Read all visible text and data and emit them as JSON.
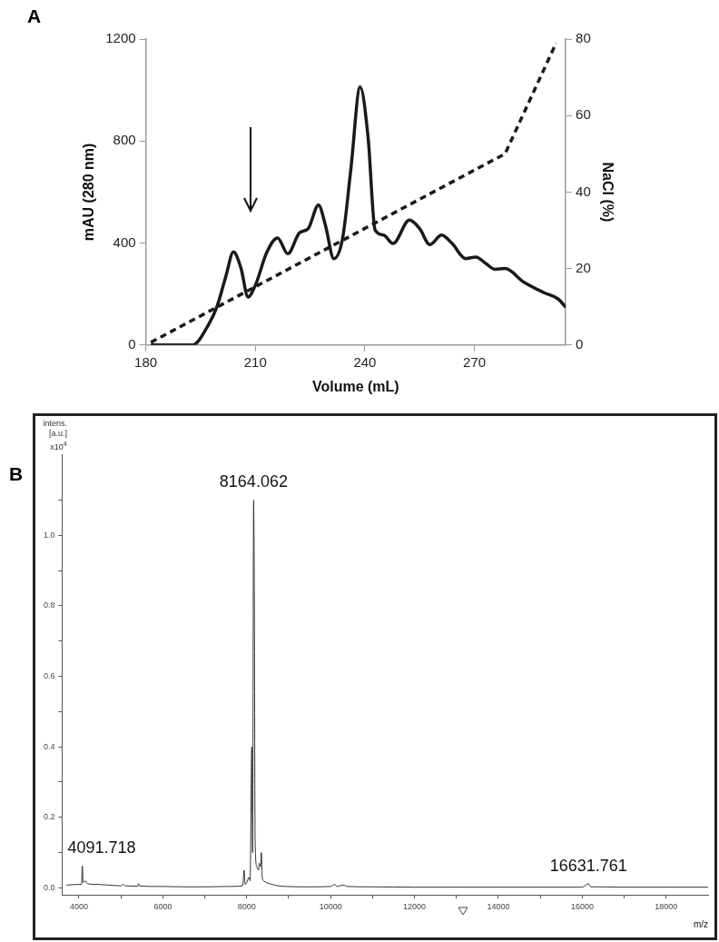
{
  "chart_data": [
    {
      "type": "line",
      "title": "A",
      "xlabel": "Volume (mL)",
      "ylabel": "mAU (280 nm)",
      "y2label": "NaCl (%)",
      "xlim": [
        180,
        295
      ],
      "xticks": [
        180,
        210,
        240,
        270
      ],
      "ylim": [
        0,
        1200
      ],
      "yticks": [
        0,
        400,
        800,
        1200
      ],
      "y2lim": [
        0,
        80
      ],
      "y2ticks": [
        0,
        20,
        40,
        60,
        80
      ],
      "grid": false,
      "legend": false,
      "series": [
        {
          "color": "#1a1a1a",
          "line_style": "solid",
          "x": [
            181.4,
            192.8,
            197.3,
            199.6,
            202,
            204,
            206.1,
            208,
            210,
            213.2,
            216.1,
            218.9,
            222.1,
            224.5,
            227.3,
            229.2,
            231.5,
            233.9,
            236.2,
            238.7,
            240.9,
            242.8,
            245.1,
            247.7,
            252.2,
            255,
            257.8,
            261,
            263.9,
            267.6,
            270.4,
            273.2,
            275.6,
            278.4,
            283.5,
            289.1,
            292.9,
            295
          ],
          "values": [
            0,
            0,
            83,
            155,
            273,
            365,
            300,
            188,
            234,
            365,
            420,
            358,
            440,
            457,
            549,
            470,
            339,
            418,
            694,
            1012,
            812,
            451,
            431,
            398,
            490,
            457,
            394,
            431,
            398,
            339,
            345,
            319,
            297,
            300,
            247,
            205,
            181,
            148
          ]
        },
        {
          "color": "#1a1a1a",
          "line_style": "dashed",
          "axis": "y2",
          "x": [
            181.4,
            278.4,
            292.4
          ],
          "values": [
            0.7,
            50,
            79
          ]
        }
      ]
    },
    {
      "type": "line",
      "title": "B",
      "xlabel": "m/z",
      "ylabel": "intens. [a.u.] x10$^{4}$",
      "xlim": [
        3600,
        19000
      ],
      "xticks": [
        4000,
        {
          "value": 5000,
          "label": null
        },
        6000,
        {
          "value": 7000,
          "label": null
        },
        8000,
        {
          "value": 9000,
          "label": null
        },
        10000,
        {
          "value": 11000,
          "label": null
        },
        12000,
        {
          "value": 13000,
          "label": null
        },
        14000,
        {
          "value": 15000,
          "label": null
        },
        16000,
        {
          "value": 17000,
          "label": null
        },
        18000
      ],
      "ylim": [
        -0.02,
        1.23
      ],
      "yticks": [
        {
          "value": 0,
          "label": "0.0"
        },
        {
          "value": 0.1,
          "label": null
        },
        {
          "value": 0.2,
          "label": "0.2"
        },
        {
          "value": 0.3,
          "label": null
        },
        {
          "value": 0.4,
          "label": "0.4"
        },
        {
          "value": 0.5,
          "label": null
        },
        {
          "value": 0.6,
          "label": "0.6"
        },
        {
          "value": 0.7,
          "label": null
        },
        {
          "value": 0.8,
          "label": "0.8"
        },
        {
          "value": 0.9,
          "label": null
        },
        {
          "value": 1,
          "label": "1.0"
        },
        {
          "value": 1.1,
          "label": null
        }
      ],
      "grid": false,
      "legend": false,
      "annotations": [
        {
          "text": "8164.062",
          "x": 8164,
          "y": 1.1
        },
        {
          "text": "4091.718",
          "x": 4080,
          "y": 0.062
        },
        {
          "text": "16631.761",
          "x": 16150,
          "y": 0.012
        }
      ],
      "series": [
        {
          "color": "#333333",
          "line_style": "solid",
          "x": [
            3700,
            4000,
            4060,
            4080,
            4100,
            4150,
            4200,
            4400,
            4700,
            5000,
            5050,
            5100,
            5400,
            5420,
            5450,
            6000,
            6500,
            7000,
            7500,
            7900,
            7940,
            7960,
            8000,
            8050,
            8080,
            8120,
            8140,
            8164,
            8180,
            8200,
            8240,
            8280,
            8300,
            8330,
            8350,
            8370,
            8400,
            8600,
            8800,
            9500,
            10000,
            10100,
            10150,
            10300,
            10400,
            11000,
            12000,
            13000,
            14000,
            15000,
            16000,
            16150,
            16200,
            16400,
            17000,
            18000,
            19000
          ],
          "values": [
            0.008,
            0.01,
            0.01,
            0.062,
            0.015,
            0.02,
            0.012,
            0.01,
            0.008,
            0.006,
            0.01,
            0.006,
            0.005,
            0.012,
            0.005,
            0.004,
            0.003,
            0.003,
            0.004,
            0.006,
            0.05,
            0.01,
            0.015,
            0.03,
            0.02,
            0.4,
            0.1,
            1.1,
            0.85,
            0.13,
            0.06,
            0.05,
            0.07,
            0.06,
            0.1,
            0.03,
            0.02,
            0.01,
            0.005,
            0.003,
            0.004,
            0.01,
            0.004,
            0.008,
            0.004,
            0.003,
            0.002,
            0.002,
            0.002,
            0.002,
            0.002,
            0.012,
            0.003,
            0.003,
            0.002,
            0.002,
            0.002
          ]
        }
      ]
    }
  ]
}
